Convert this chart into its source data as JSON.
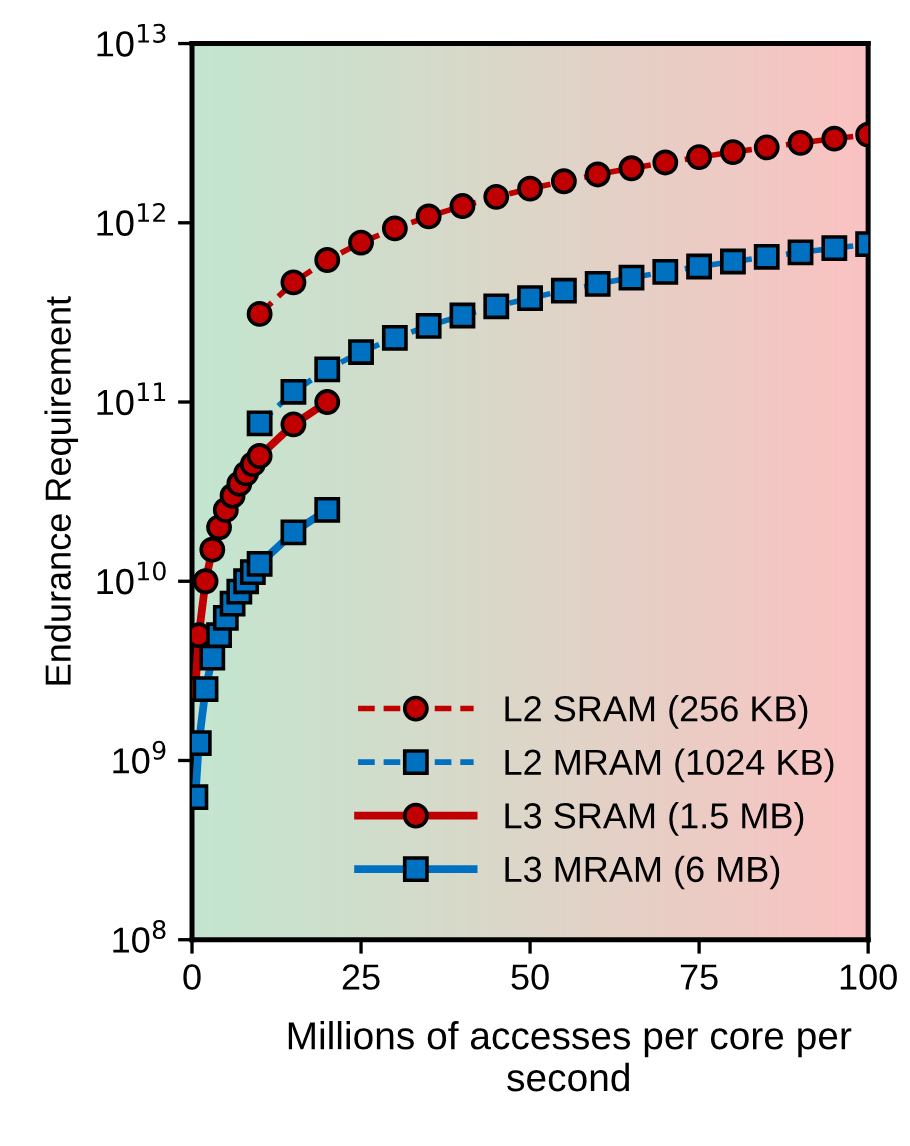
{
  "chart_data": {
    "type": "line",
    "xlabel": "Millions of accesses per core per second",
    "ylabel": "Endurance Requirement",
    "log": "y",
    "xlim": [
      0,
      100
    ],
    "xticks": [
      0,
      25,
      50,
      75,
      100
    ],
    "ylim": [
      100000000.0,
      10000000000000.0
    ],
    "yticks": [
      {
        "value": 100000000.0,
        "label": "10$^{8}$"
      },
      {
        "value": 1000000000.0,
        "label": "10$^{9}$"
      },
      {
        "value": 10000000000.0,
        "label": "10$^{10}$"
      },
      {
        "value": 100000000000.0,
        "label": "10$^{11}$"
      },
      {
        "value": 1000000000000.0,
        "label": "10$^{12}$"
      },
      {
        "value": 10000000000000.0,
        "label": "10$^{13}$"
      }
    ],
    "grid": false,
    "legend": "bottom right",
    "series": [
      {
        "name": "L2 SRAM (256 KB)",
        "color": "#c00000",
        "marker": "circle",
        "line_style": "dashed",
        "x": [
          10,
          15,
          20,
          25,
          30,
          35,
          40,
          45,
          50,
          55,
          60,
          65,
          70,
          75,
          80,
          85,
          90,
          95,
          100
        ],
        "values": [
          310000000000.0,
          465000000000.0,
          620000000000.0,
          775000000000.0,
          930000000000.0,
          1085000000000.0,
          1240000000000.0,
          1395000000000.0,
          1550000000000.0,
          1705000000000.0,
          1860000000000.0,
          2015000000000.0,
          2170000000000.0,
          2325000000000.0,
          2480000000000.0,
          2635000000000.0,
          2790000000000.0,
          2945000000000.0,
          3100000000000.0
        ]
      },
      {
        "name": "L2 MRAM (1024 KB)",
        "color": "#0070c0",
        "marker": "square",
        "line_style": "dashed",
        "x": [
          10,
          15,
          20,
          25,
          30,
          35,
          40,
          45,
          50,
          55,
          60,
          65,
          70,
          75,
          80,
          85,
          90,
          95,
          100
        ],
        "values": [
          76000000000.0,
          114000000000.0,
          152000000000.0,
          190000000000.0,
          228000000000.0,
          266000000000.0,
          304000000000.0,
          342000000000.0,
          380000000000.0,
          418000000000.0,
          456000000000.0,
          494000000000.0,
          532000000000.0,
          570000000000.0,
          608000000000.0,
          646000000000.0,
          684000000000.0,
          722000000000.0,
          760000000000.0
        ]
      },
      {
        "name": "L3 SRAM (1.5 MB)",
        "color": "#c00000",
        "marker": "circle",
        "line_style": "solid",
        "x": [
          0.5,
          1,
          2,
          3,
          4,
          5,
          6,
          7,
          8,
          9,
          10,
          15,
          20
        ],
        "values": [
          2500000000.0,
          5000000000.0,
          10000000000.0,
          15000000000.0,
          20000000000.0,
          25000000000.0,
          30000000000.0,
          35000000000.0,
          40000000000.0,
          45000000000.0,
          50000000000.0,
          75000000000.0,
          100000000000.0
        ]
      },
      {
        "name": "L3 MRAM (6 MB)",
        "color": "#0070c0",
        "marker": "square",
        "line_style": "solid",
        "x": [
          0.5,
          1,
          2,
          3,
          4,
          5,
          6,
          7,
          8,
          9,
          10,
          15,
          20
        ],
        "values": [
          625000000.0,
          1250000000.0,
          2500000000.0,
          3750000000.0,
          5000000000.0,
          6250000000.0,
          7500000000.0,
          8750000000.0,
          10000000000.0,
          11250000000.0,
          12500000000.0,
          18750000000.0,
          25000000000.0
        ]
      }
    ]
  }
}
